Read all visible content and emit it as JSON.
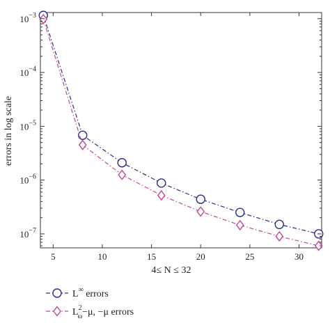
{
  "chart_data": {
    "type": "line",
    "title": "",
    "xlabel": "4≤ N ≤ 32",
    "ylabel": "errors in log scale",
    "xlim": [
      3.7,
      32.3
    ],
    "ylim": [
      5.5e-08,
      0.0013
    ],
    "yscale": "log",
    "grid": false,
    "legend_position": "bottom-left, below plot",
    "x_ticks": [
      5,
      10,
      15,
      20,
      25,
      30
    ],
    "y_ticks": [
      {
        "value": 1e-07,
        "mantissa": "10",
        "exp": "−7"
      },
      {
        "value": 1e-06,
        "mantissa": "10",
        "exp": "−6"
      },
      {
        "value": 1e-05,
        "mantissa": "10",
        "exp": "−5"
      },
      {
        "value": 0.0001,
        "mantissa": "10",
        "exp": "−4"
      },
      {
        "value": 0.001,
        "mantissa": "10",
        "exp": "−3"
      }
    ],
    "x": [
      4,
      8,
      12,
      16,
      20,
      24,
      28,
      32
    ],
    "series": [
      {
        "name": "L∞ errors",
        "values": [
          0.00115,
          6.8e-06,
          2.1e-06,
          8.8e-07,
          4.4e-07,
          2.5e-07,
          1.5e-07,
          1e-07
        ],
        "color": "#2a2a8c",
        "marker": "circle",
        "line_style": "dash-dot"
      },
      {
        "name": "L²ω−μ, −μ errors",
        "values": [
          0.00098,
          4.5e-06,
          1.25e-06,
          5.2e-07,
          2.6e-07,
          1.45e-07,
          9e-08,
          6e-08
        ],
        "color": "#c0469a",
        "marker": "diamond",
        "line_style": "dash-dot"
      }
    ],
    "legend": [
      {
        "base": "L",
        "sup": "∞",
        "sub": "",
        "rest": " errors"
      },
      {
        "base": "L",
        "sup": "2",
        "sub": "ω",
        "rest": "−μ, −μ errors"
      }
    ]
  }
}
